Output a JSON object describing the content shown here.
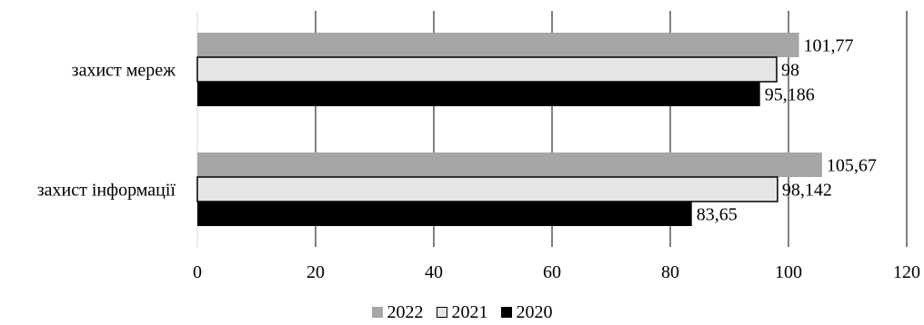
{
  "chart_data": {
    "type": "bar",
    "orientation": "horizontal",
    "categories": [
      "захист мереж",
      "захист інформації"
    ],
    "series": [
      {
        "name": "2022",
        "values": [
          101.77,
          105.67
        ],
        "labels": [
          "101,77",
          "105,67"
        ],
        "color": "#a6a6a6",
        "stroke": "none"
      },
      {
        "name": "2021",
        "values": [
          98,
          98.142
        ],
        "labels": [
          "98",
          "98,142"
        ],
        "color": "#e6e6e6",
        "stroke": "#000000"
      },
      {
        "name": "2020",
        "values": [
          95.186,
          83.65
        ],
        "labels": [
          "95,186",
          "83,65"
        ],
        "color": "#000000",
        "stroke": "none"
      }
    ],
    "xlim": [
      0,
      120
    ],
    "x_ticks": [
      "0",
      "20",
      "40",
      "60",
      "80",
      "100",
      "120"
    ],
    "grid": true,
    "legend_position": "bottom"
  }
}
